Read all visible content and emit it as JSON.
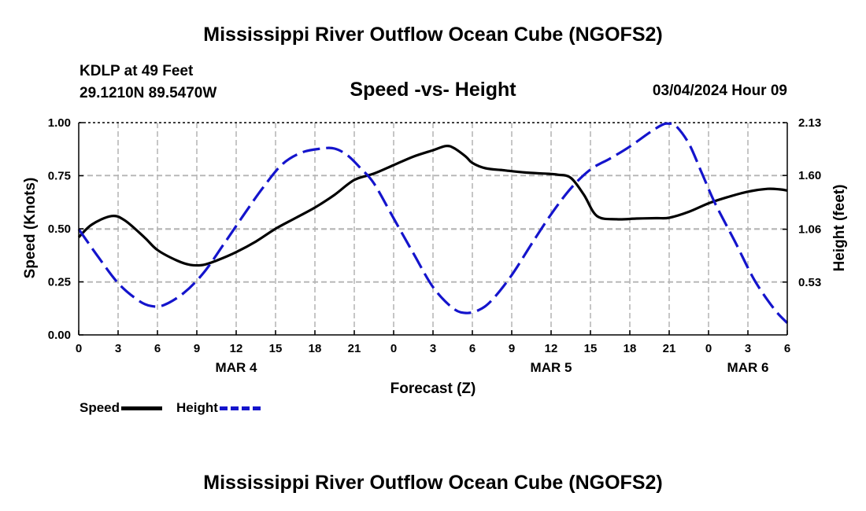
{
  "header": {
    "title": "Mississippi River Outflow Ocean Cube (NGOFS2)",
    "station_line1": "KDLP at 49 Feet",
    "station_line2": "29.1210N  89.5470W",
    "subtitle": "Speed -vs- Height",
    "datetime": "03/04/2024 Hour 09"
  },
  "footer": {
    "title": "Mississippi River Outflow Ocean Cube (NGOFS2)"
  },
  "legend": {
    "speed_label": "Speed",
    "height_label": "Height"
  },
  "colors": {
    "speed": "#000000",
    "height": "#1414cc",
    "grid": "#b4b4b4"
  },
  "chart_data": {
    "type": "line",
    "xlabel": "Forecast (Z)",
    "ylabel_left": "Speed (Knots)",
    "ylabel_right": "Height (feet)",
    "x_range": [
      0,
      54
    ],
    "y_left_range": [
      0,
      1
    ],
    "y_right_range": [
      0,
      2.13
    ],
    "y_left_ticks": [
      "0.00",
      "0.25",
      "0.50",
      "0.75",
      "1.00"
    ],
    "y_right_ticks": [
      "0.53",
      "1.06",
      "1.60",
      "2.13"
    ],
    "x_ticks": [
      0,
      3,
      6,
      9,
      12,
      15,
      18,
      21,
      24,
      27,
      30,
      33,
      36,
      39,
      42,
      45,
      48,
      51,
      54
    ],
    "x_tick_labels": [
      "0",
      "3",
      "6",
      "9",
      "12",
      "15",
      "18",
      "21",
      "0",
      "3",
      "6",
      "9",
      "12",
      "15",
      "18",
      "21",
      "0",
      "3",
      "6"
    ],
    "date_labels": [
      {
        "x": 12,
        "label": "MAR 4"
      },
      {
        "x": 36,
        "label": "MAR 5"
      },
      {
        "x": 51,
        "label": "MAR 6"
      }
    ],
    "grid": true,
    "series": [
      {
        "name": "Speed",
        "axis": "left",
        "style": "solid",
        "x": [
          0,
          1,
          2.5,
          3.5,
          5,
          6,
          7.5,
          8.5,
          9.5,
          10.5,
          12,
          13.5,
          15,
          16.5,
          18,
          19.5,
          21,
          22.5,
          24,
          25.5,
          27,
          28,
          28.6,
          29.5,
          30,
          31,
          32.5,
          34,
          35.5,
          36.5,
          37.5,
          38.5,
          39.5,
          41,
          42.5,
          44,
          45,
          46.5,
          48,
          49.5,
          51,
          52.5,
          53.5,
          54
        ],
        "y": [
          0.46,
          0.52,
          0.56,
          0.54,
          0.46,
          0.4,
          0.35,
          0.33,
          0.33,
          0.35,
          0.39,
          0.44,
          0.5,
          0.55,
          0.6,
          0.66,
          0.73,
          0.76,
          0.8,
          0.84,
          0.87,
          0.89,
          0.88,
          0.84,
          0.81,
          0.785,
          0.775,
          0.765,
          0.76,
          0.755,
          0.74,
          0.66,
          0.56,
          0.545,
          0.548,
          0.55,
          0.552,
          0.58,
          0.62,
          0.65,
          0.675,
          0.688,
          0.685,
          0.68
        ]
      },
      {
        "name": "Height",
        "axis": "right",
        "style": "dashed",
        "x": [
          0,
          1.5,
          3,
          4.5,
          5.5,
          6.5,
          8,
          9.5,
          11,
          12.5,
          14,
          15.5,
          17,
          18.5,
          19.5,
          20.5,
          21.5,
          22.5,
          24,
          25.5,
          27,
          28.5,
          29.5,
          30.5,
          31.5,
          33,
          34.5,
          36,
          37.5,
          39,
          40.5,
          42,
          43.5,
          44.5,
          45,
          45.5,
          46.5,
          47.5,
          48.5,
          50,
          51.5,
          53,
          54
        ],
        "y": [
          1.06,
          0.78,
          0.52,
          0.35,
          0.29,
          0.3,
          0.42,
          0.62,
          0.9,
          1.19,
          1.47,
          1.71,
          1.83,
          1.87,
          1.87,
          1.8,
          1.67,
          1.52,
          1.17,
          0.82,
          0.48,
          0.27,
          0.22,
          0.25,
          0.35,
          0.6,
          0.91,
          1.21,
          1.47,
          1.66,
          1.77,
          1.89,
          2.03,
          2.11,
          2.12,
          2.1,
          1.92,
          1.62,
          1.32,
          0.94,
          0.55,
          0.26,
          0.12
        ]
      }
    ]
  }
}
